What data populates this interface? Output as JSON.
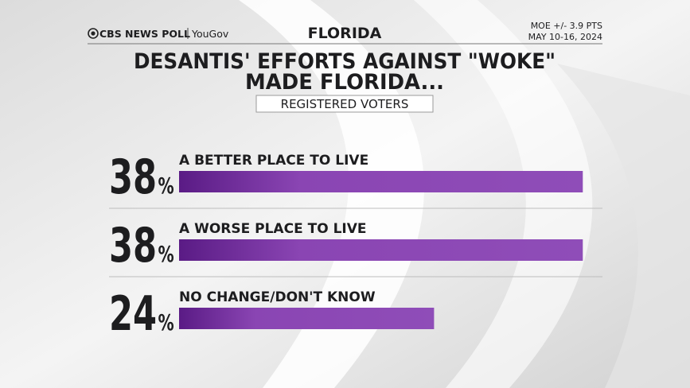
{
  "chart_data": {
    "type": "bar",
    "orientation": "horizontal",
    "brand": "CBS NEWS POLL",
    "partner": "YouGov",
    "header": "FLORIDA",
    "moe": "MOE +/- 3.9 PTS",
    "dates": "MAY 10-16, 2024",
    "title": [
      "DESANTIS' EFFORTS AGAINST \"WOKE\"",
      "MADE FLORIDA..."
    ],
    "subtitle": "REGISTERED VOTERS",
    "categories": [
      "A BETTER PLACE TO LIVE",
      "A WORSE PLACE TO LIVE",
      "NO CHANGE/DON'T KNOW"
    ],
    "values": [
      38,
      38,
      24
    ],
    "value_labels": [
      "38%",
      "38%",
      "24%"
    ],
    "color": "#8a45b3"
  }
}
